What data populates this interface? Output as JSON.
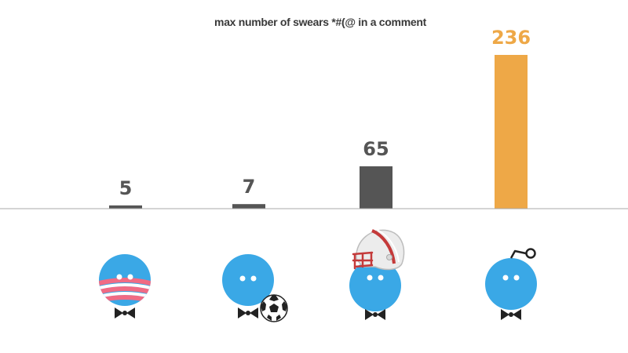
{
  "chart_data": {
    "type": "bar",
    "title": "max number of swears *#(@ in a comment",
    "categories": [
      "politics-mascot",
      "soccer-mascot",
      "football-mascot",
      "reddit-mascot"
    ],
    "values": [
      5,
      7,
      65,
      236
    ],
    "ylim": [
      0,
      236
    ],
    "grid": false,
    "legend": "none",
    "data_labels": true,
    "colors": [
      "#555555",
      "#555555",
      "#555555",
      "#eea847"
    ],
    "label_colors": [
      "#555555",
      "#555555",
      "#555555",
      "#eea847"
    ]
  },
  "colors": {
    "mascot_body": "#3aa8e6",
    "baseline": "#aaaaaa"
  },
  "icons": [
    "obama-stripes-icon",
    "soccer-ball-icon",
    "football-helmet-icon",
    "antenna-icon",
    "bowtie-icon"
  ]
}
